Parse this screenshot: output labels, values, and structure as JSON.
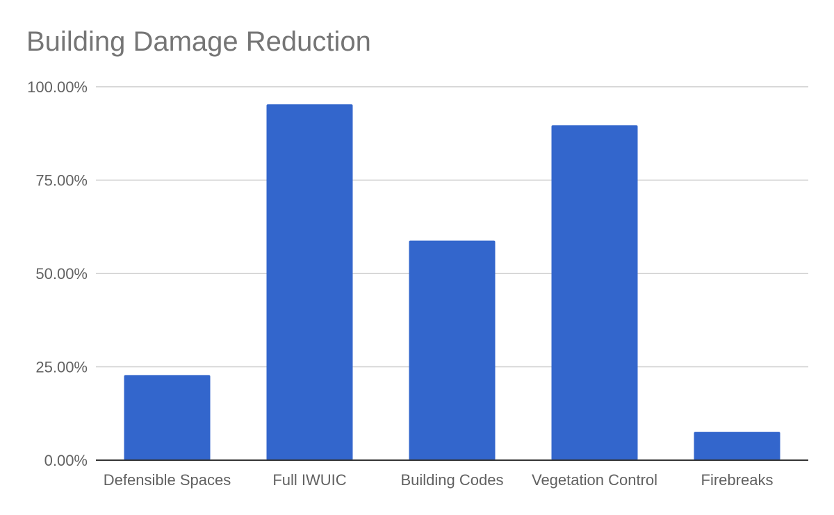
{
  "chart_data": {
    "type": "bar",
    "title": "Building Damage Reduction",
    "xlabel": "",
    "ylabel": "",
    "categories": [
      "Defensible Spaces",
      "Full IWUIC",
      "Building Codes",
      "Vegetation Control",
      "Firebreaks"
    ],
    "values": [
      22.8,
      95.3,
      58.8,
      89.7,
      7.6
    ],
    "ylim": [
      0,
      100
    ],
    "yticks": [
      "0.00%",
      "25.00%",
      "50.00%",
      "75.00%",
      "100.00%"
    ],
    "grid": true,
    "legend": "none",
    "bar_color": "#3366CC",
    "grid_color": "#CCCCCC",
    "axis_color": "#333333"
  }
}
